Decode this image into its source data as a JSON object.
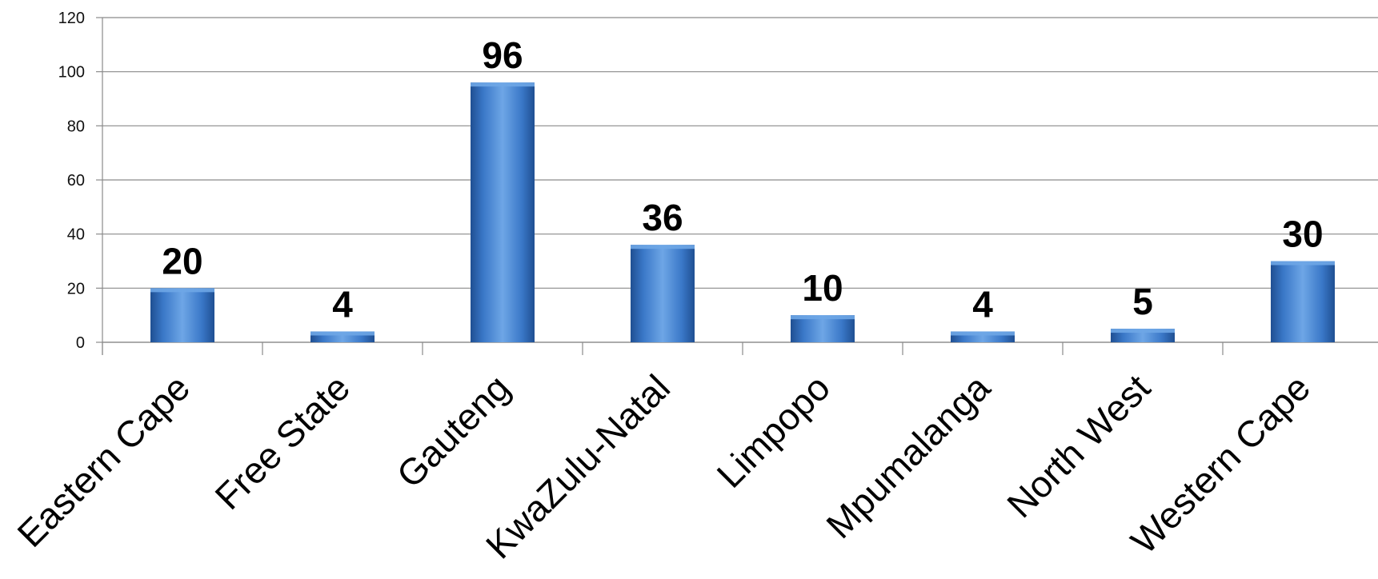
{
  "chart_data": {
    "type": "bar",
    "title": "",
    "xlabel": "",
    "ylabel": "",
    "categories": [
      "Eastern Cape",
      "Free State",
      "Gauteng",
      "KwaZulu-Natal",
      "Limpopo",
      "Mpumalanga",
      "North West",
      "Western Cape"
    ],
    "values": [
      20,
      4,
      96,
      36,
      10,
      4,
      5,
      30
    ],
    "ylim": [
      0,
      120
    ],
    "yticks": [
      0,
      20,
      40,
      60,
      80,
      100,
      120
    ],
    "grid": true,
    "legend": "none",
    "data_labels": true,
    "colors": {
      "bar_light": "#6ea6e6",
      "bar_mid": "#3a78c8",
      "bar_dark": "#1f4f92",
      "grid": "#8a8a8a"
    }
  }
}
